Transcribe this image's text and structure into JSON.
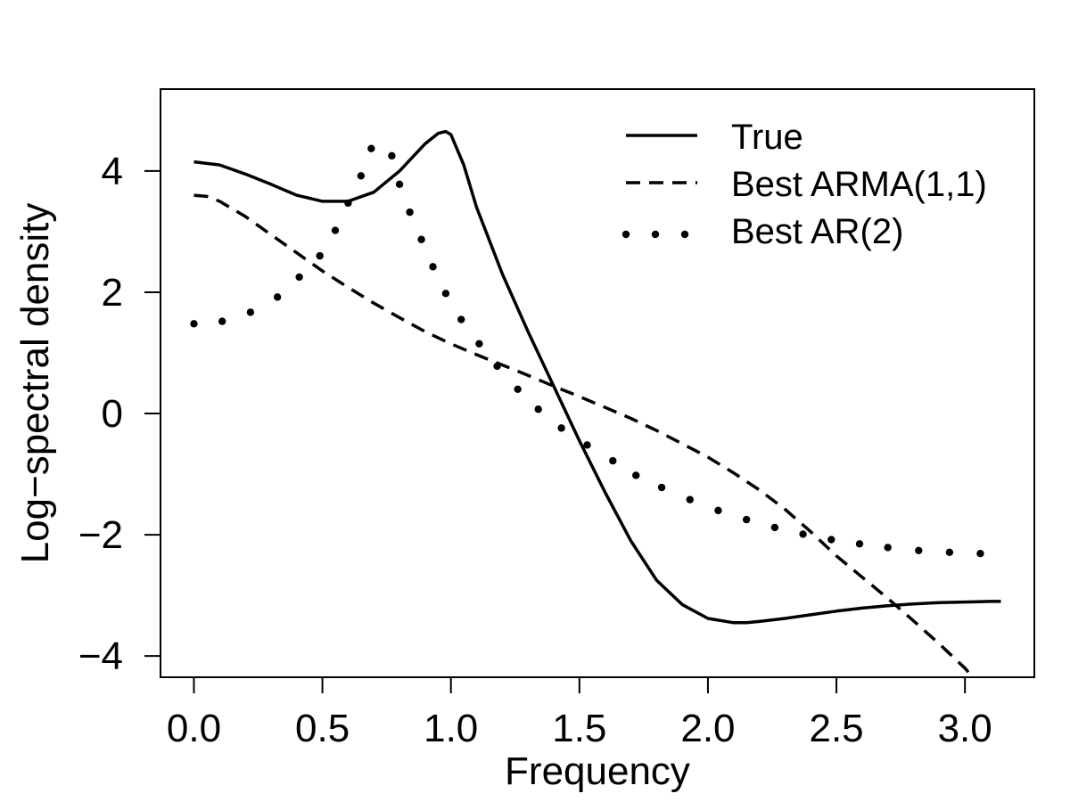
{
  "chart_data": {
    "type": "line",
    "title": "",
    "xlabel": "Frequency",
    "ylabel": "Log−spectral density",
    "xlim": [
      -0.13,
      3.27
    ],
    "ylim": [
      -4.35,
      5.35
    ],
    "xticks": [
      0.0,
      0.5,
      1.0,
      1.5,
      2.0,
      2.5,
      3.0
    ],
    "xtick_labels": [
      "0.0",
      "0.5",
      "1.0",
      "1.5",
      "2.0",
      "2.5",
      "3.0"
    ],
    "yticks": [
      -4,
      -2,
      0,
      2,
      4
    ],
    "ytick_labels": [
      "−4",
      "−2",
      "0",
      "2",
      "4"
    ],
    "grid": false,
    "legend_position": "top-right",
    "series": [
      {
        "name": "True",
        "style": "solid",
        "color": "#000000",
        "x": [
          0.0,
          0.1,
          0.2,
          0.3,
          0.4,
          0.5,
          0.6,
          0.7,
          0.8,
          0.9,
          0.95,
          0.98,
          1.0,
          1.05,
          1.1,
          1.2,
          1.3,
          1.4,
          1.5,
          1.6,
          1.7,
          1.8,
          1.9,
          2.0,
          2.1,
          2.15,
          2.2,
          2.3,
          2.4,
          2.5,
          2.6,
          2.7,
          2.8,
          2.9,
          3.0,
          3.1,
          3.14
        ],
        "y": [
          4.15,
          4.1,
          3.95,
          3.78,
          3.6,
          3.5,
          3.5,
          3.65,
          4.0,
          4.45,
          4.62,
          4.65,
          4.6,
          4.1,
          3.4,
          2.3,
          1.35,
          0.45,
          -0.45,
          -1.3,
          -2.1,
          -2.75,
          -3.15,
          -3.38,
          -3.45,
          -3.45,
          -3.43,
          -3.38,
          -3.32,
          -3.26,
          -3.21,
          -3.17,
          -3.14,
          -3.12,
          -3.11,
          -3.1,
          -3.1
        ]
      },
      {
        "name": "Best ARMA(1,1)",
        "style": "dashed",
        "color": "#000000",
        "x": [
          0.0,
          0.05,
          0.1,
          0.2,
          0.3,
          0.4,
          0.5,
          0.6,
          0.7,
          0.8,
          0.9,
          1.0,
          1.1,
          1.2,
          1.3,
          1.4,
          1.5,
          1.6,
          1.7,
          1.8,
          1.9,
          2.0,
          2.1,
          2.2,
          2.3,
          2.4,
          2.5,
          2.6,
          2.7,
          2.8,
          2.9,
          3.0,
          3.03
        ],
        "y": [
          3.6,
          3.58,
          3.5,
          3.25,
          2.95,
          2.65,
          2.35,
          2.08,
          1.82,
          1.58,
          1.35,
          1.15,
          0.97,
          0.8,
          0.63,
          0.45,
          0.28,
          0.1,
          -0.08,
          -0.28,
          -0.5,
          -0.72,
          -0.98,
          -1.26,
          -1.58,
          -1.95,
          -2.35,
          -2.7,
          -3.05,
          -3.42,
          -3.8,
          -4.2,
          -4.35
        ]
      },
      {
        "name": "Best AR(2)",
        "style": "dotted",
        "color": "#000000",
        "x": [
          0.0,
          0.11,
          0.22,
          0.325,
          0.41,
          0.49,
          0.55,
          0.6,
          0.65,
          0.69,
          0.77,
          0.8,
          0.84,
          0.885,
          0.93,
          0.98,
          1.04,
          1.11,
          1.18,
          1.26,
          1.34,
          1.43,
          1.53,
          1.63,
          1.72,
          1.82,
          1.93,
          2.04,
          2.15,
          2.26,
          2.37,
          2.48,
          2.59,
          2.7,
          2.82,
          2.94,
          3.06
        ],
        "y": [
          1.48,
          1.52,
          1.67,
          1.92,
          2.25,
          2.6,
          3.02,
          3.47,
          3.92,
          4.37,
          4.25,
          3.78,
          3.32,
          2.87,
          2.42,
          1.98,
          1.55,
          1.15,
          0.78,
          0.4,
          0.07,
          -0.24,
          -0.52,
          -0.78,
          -1.02,
          -1.22,
          -1.42,
          -1.6,
          -1.75,
          -1.88,
          -1.99,
          -2.08,
          -2.15,
          -2.21,
          -2.26,
          -2.29,
          -2.31
        ]
      }
    ]
  }
}
